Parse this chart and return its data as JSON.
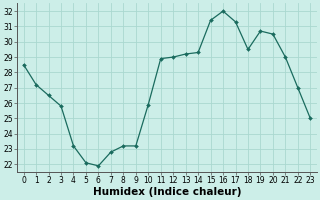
{
  "x": [
    0,
    1,
    2,
    3,
    4,
    5,
    6,
    7,
    8,
    9,
    10,
    11,
    12,
    13,
    14,
    15,
    16,
    17,
    18,
    19,
    20,
    21,
    22,
    23
  ],
  "y": [
    28.5,
    27.2,
    26.5,
    25.8,
    23.2,
    22.1,
    21.9,
    22.8,
    23.2,
    23.2,
    25.9,
    28.9,
    29.0,
    29.2,
    29.3,
    31.4,
    32.0,
    31.3,
    29.5,
    30.7,
    30.5,
    29.0,
    27.0,
    25.0
  ],
  "line_color": "#1a6b5e",
  "marker": "D",
  "marker_size": 2.0,
  "bg_color": "#cceee8",
  "grid_color": "#aad8d0",
  "xlabel": "Humidex (Indice chaleur)",
  "ylim": [
    21.5,
    32.5
  ],
  "xlim": [
    -0.5,
    23.5
  ],
  "yticks": [
    22,
    23,
    24,
    25,
    26,
    27,
    28,
    29,
    30,
    31,
    32
  ],
  "xticks": [
    0,
    1,
    2,
    3,
    4,
    5,
    6,
    7,
    8,
    9,
    10,
    11,
    12,
    13,
    14,
    15,
    16,
    17,
    18,
    19,
    20,
    21,
    22,
    23
  ],
  "tick_fontsize": 5.5,
  "xlabel_fontsize": 7.5
}
